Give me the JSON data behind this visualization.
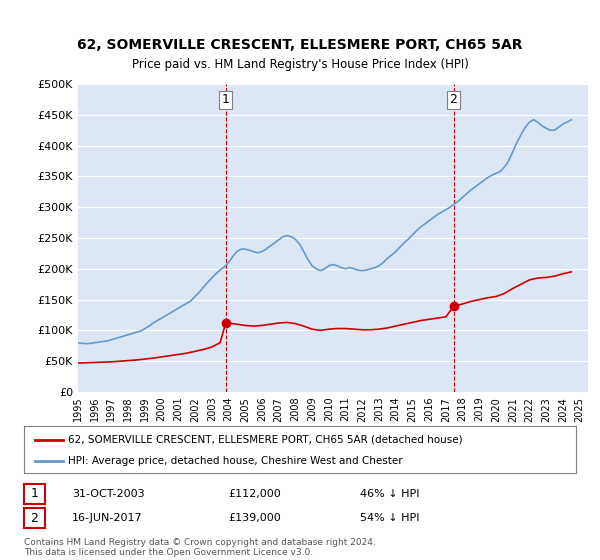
{
  "title": "62, SOMERVILLE CRESCENT, ELLESMERE PORT, CH65 5AR",
  "subtitle": "Price paid vs. HM Land Registry's House Price Index (HPI)",
  "legend_line1": "62, SOMERVILLE CRESCENT, ELLESMERE PORT, CH65 5AR (detached house)",
  "legend_line2": "HPI: Average price, detached house, Cheshire West and Chester",
  "annotation1_label": "1",
  "annotation1_date": "31-OCT-2003",
  "annotation1_price": "£112,000",
  "annotation1_hpi": "46% ↓ HPI",
  "annotation2_label": "2",
  "annotation2_date": "16-JUN-2017",
  "annotation2_price": "£139,000",
  "annotation2_hpi": "54% ↓ HPI",
  "footnote": "Contains HM Land Registry data © Crown copyright and database right 2024.\nThis data is licensed under the Open Government Licence v3.0.",
  "plot_bg_color": "#dce6f5",
  "fig_bg_color": "#ffffff",
  "grid_color": "#ffffff",
  "red_color": "#cc0000",
  "blue_color": "#6699cc",
  "vline_color": "#cc0000",
  "marker1_x": 2003.83,
  "marker1_y": 112000,
  "marker2_x": 2017.46,
  "marker2_y": 139000,
  "ylim": [
    0,
    500000
  ],
  "xlim": [
    1995,
    2025.5
  ],
  "yticks": [
    0,
    50000,
    100000,
    150000,
    200000,
    250000,
    300000,
    350000,
    400000,
    450000,
    500000
  ],
  "ytick_labels": [
    "£0",
    "£50K",
    "£100K",
    "£150K",
    "£200K",
    "£250K",
    "£300K",
    "£350K",
    "£400K",
    "£450K",
    "£500K"
  ],
  "hpi_x": [
    1995.0,
    1995.25,
    1995.5,
    1995.75,
    1996.0,
    1996.25,
    1996.5,
    1996.75,
    1997.0,
    1997.25,
    1997.5,
    1997.75,
    1998.0,
    1998.25,
    1998.5,
    1998.75,
    1999.0,
    1999.25,
    1999.5,
    1999.75,
    2000.0,
    2000.25,
    2000.5,
    2000.75,
    2001.0,
    2001.25,
    2001.5,
    2001.75,
    2002.0,
    2002.25,
    2002.5,
    2002.75,
    2003.0,
    2003.25,
    2003.5,
    2003.75,
    2004.0,
    2004.25,
    2004.5,
    2004.75,
    2005.0,
    2005.25,
    2005.5,
    2005.75,
    2006.0,
    2006.25,
    2006.5,
    2006.75,
    2007.0,
    2007.25,
    2007.5,
    2007.75,
    2008.0,
    2008.25,
    2008.5,
    2008.75,
    2009.0,
    2009.25,
    2009.5,
    2009.75,
    2010.0,
    2010.25,
    2010.5,
    2010.75,
    2011.0,
    2011.25,
    2011.5,
    2011.75,
    2012.0,
    2012.25,
    2012.5,
    2012.75,
    2013.0,
    2013.25,
    2013.5,
    2013.75,
    2014.0,
    2014.25,
    2014.5,
    2014.75,
    2015.0,
    2015.25,
    2015.5,
    2015.75,
    2016.0,
    2016.25,
    2016.5,
    2016.75,
    2017.0,
    2017.25,
    2017.5,
    2017.75,
    2018.0,
    2018.25,
    2018.5,
    2018.75,
    2019.0,
    2019.25,
    2019.5,
    2019.75,
    2020.0,
    2020.25,
    2020.5,
    2020.75,
    2021.0,
    2021.25,
    2021.5,
    2021.75,
    2022.0,
    2022.25,
    2022.5,
    2022.75,
    2023.0,
    2023.25,
    2023.5,
    2023.75,
    2024.0,
    2024.25,
    2024.5
  ],
  "hpi_y": [
    80000,
    79000,
    78500,
    79000,
    80000,
    81000,
    82000,
    83000,
    85000,
    87000,
    89000,
    91000,
    93000,
    95000,
    97000,
    99000,
    103000,
    107000,
    112000,
    116000,
    120000,
    124000,
    128000,
    132000,
    136000,
    140000,
    144000,
    148000,
    155000,
    162000,
    170000,
    178000,
    185000,
    192000,
    198000,
    203000,
    210000,
    220000,
    228000,
    232000,
    232000,
    230000,
    228000,
    226000,
    228000,
    232000,
    237000,
    242000,
    247000,
    252000,
    254000,
    252000,
    248000,
    240000,
    228000,
    215000,
    205000,
    200000,
    197000,
    200000,
    205000,
    207000,
    205000,
    202000,
    200000,
    202000,
    200000,
    198000,
    197000,
    198000,
    200000,
    202000,
    205000,
    210000,
    217000,
    222000,
    228000,
    235000,
    242000,
    248000,
    255000,
    262000,
    268000,
    273000,
    278000,
    283000,
    288000,
    292000,
    296000,
    300000,
    305000,
    310000,
    316000,
    322000,
    328000,
    333000,
    338000,
    343000,
    348000,
    352000,
    355000,
    358000,
    365000,
    375000,
    390000,
    405000,
    418000,
    430000,
    438000,
    442000,
    438000,
    432000,
    428000,
    425000,
    425000,
    430000,
    435000,
    438000,
    442000
  ],
  "price_x": [
    1995.0,
    1995.5,
    1996.0,
    1996.5,
    1997.0,
    1997.5,
    1998.0,
    1998.5,
    1999.0,
    1999.5,
    2000.0,
    2000.5,
    2001.0,
    2001.5,
    2002.0,
    2002.5,
    2003.0,
    2003.5,
    2003.83,
    2004.0,
    2004.5,
    2005.0,
    2005.5,
    2006.0,
    2006.5,
    2007.0,
    2007.5,
    2008.0,
    2008.5,
    2009.0,
    2009.5,
    2010.0,
    2010.5,
    2011.0,
    2011.5,
    2012.0,
    2012.5,
    2013.0,
    2013.5,
    2014.0,
    2014.5,
    2015.0,
    2015.5,
    2016.0,
    2016.5,
    2017.0,
    2017.46,
    2017.5,
    2018.0,
    2018.5,
    2019.0,
    2019.5,
    2020.0,
    2020.5,
    2021.0,
    2021.5,
    2022.0,
    2022.5,
    2023.0,
    2023.5,
    2024.0,
    2024.5
  ],
  "price_y": [
    47000,
    47500,
    48000,
    48500,
    49000,
    50000,
    51000,
    52000,
    53500,
    55000,
    57000,
    59000,
    61000,
    63000,
    66000,
    69000,
    73000,
    80000,
    112000,
    112000,
    110000,
    108000,
    107000,
    108000,
    110000,
    112000,
    113000,
    111000,
    107000,
    102000,
    100000,
    102000,
    103000,
    103000,
    102000,
    101000,
    101000,
    102000,
    104000,
    107000,
    110000,
    113000,
    116000,
    118000,
    120000,
    122000,
    139000,
    139000,
    143000,
    147000,
    150000,
    153000,
    155000,
    160000,
    168000,
    175000,
    182000,
    185000,
    186000,
    188000,
    192000,
    195000
  ]
}
